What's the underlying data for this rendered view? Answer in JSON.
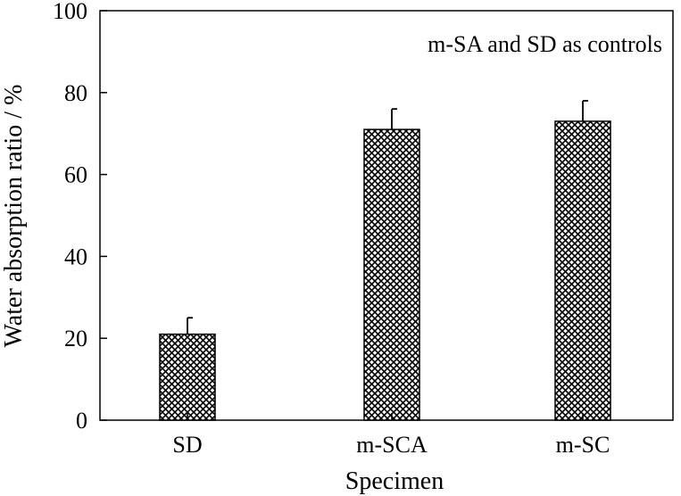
{
  "chart_data": {
    "type": "bar",
    "categories": [
      "SD",
      "m-SCA",
      "m-SC"
    ],
    "values": [
      21,
      71,
      73
    ],
    "errors": [
      4,
      5,
      5
    ],
    "xlabel": "Specimen",
    "ylabel": "Water absorption ratio / %",
    "ylim": [
      0,
      100
    ],
    "yticks": [
      0,
      20,
      40,
      60,
      80,
      100
    ],
    "annotation": "m-SA and SD as controls",
    "bar_fill": "crosshatch",
    "grid": false,
    "legend": "none"
  }
}
